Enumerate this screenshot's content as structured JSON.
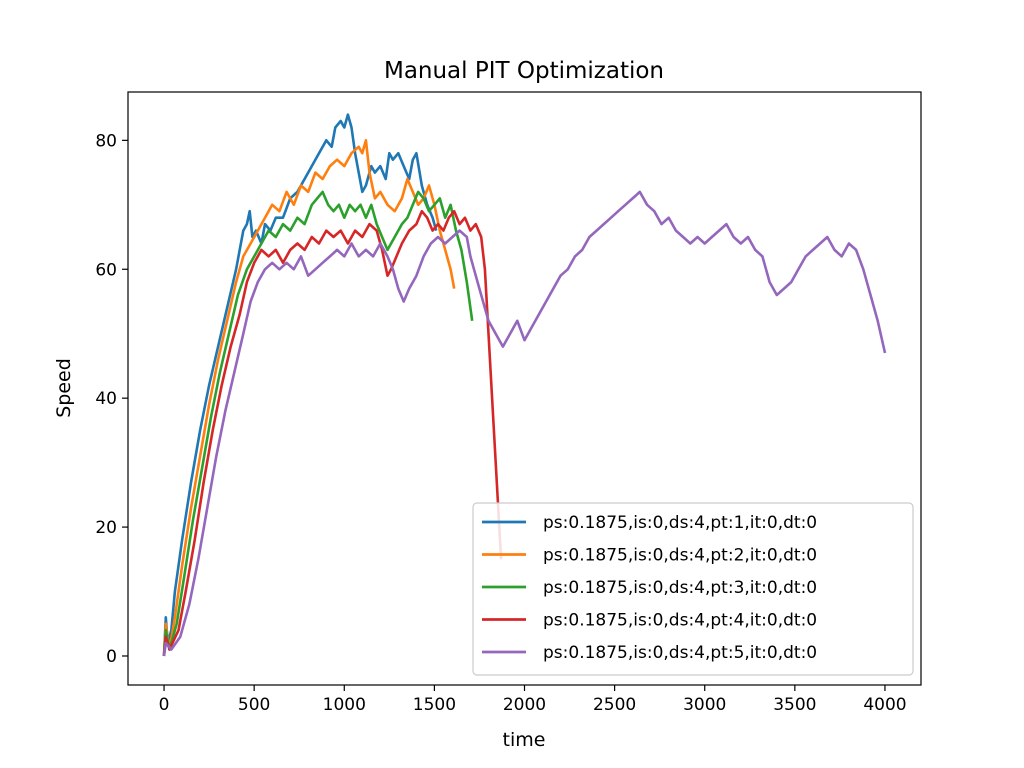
{
  "chart_data": {
    "type": "line",
    "title": "Manual PIT Optimization",
    "xlabel": "time",
    "ylabel": "Speed",
    "xlim": [
      -200,
      4200
    ],
    "ylim": [
      -4.5,
      87.5
    ],
    "xticks": [
      0,
      500,
      1000,
      1500,
      2000,
      2500,
      3000,
      3500,
      4000
    ],
    "yticks": [
      0,
      20,
      40,
      60,
      80
    ],
    "grid": false,
    "legend_position": "lower-right",
    "series": [
      {
        "name": "ps:0.1875,is:0,ds:4,pt:1,it:0,dt:0",
        "color": "#1f77b4",
        "points": [
          [
            0,
            0
          ],
          [
            10,
            6
          ],
          [
            20,
            2
          ],
          [
            40,
            4
          ],
          [
            60,
            10
          ],
          [
            100,
            18
          ],
          [
            150,
            27
          ],
          [
            200,
            35
          ],
          [
            250,
            42
          ],
          [
            300,
            48
          ],
          [
            350,
            54
          ],
          [
            400,
            60
          ],
          [
            420,
            63
          ],
          [
            440,
            66
          ],
          [
            460,
            67
          ],
          [
            475,
            69
          ],
          [
            490,
            65
          ],
          [
            510,
            66
          ],
          [
            540,
            64
          ],
          [
            560,
            67
          ],
          [
            590,
            66
          ],
          [
            620,
            68
          ],
          [
            660,
            68
          ],
          [
            700,
            71
          ],
          [
            740,
            72
          ],
          [
            780,
            74
          ],
          [
            820,
            76
          ],
          [
            860,
            78
          ],
          [
            900,
            80
          ],
          [
            930,
            79
          ],
          [
            950,
            82
          ],
          [
            980,
            83
          ],
          [
            1000,
            82
          ],
          [
            1020,
            84
          ],
          [
            1040,
            82
          ],
          [
            1060,
            78
          ],
          [
            1080,
            75
          ],
          [
            1100,
            72
          ],
          [
            1120,
            73
          ],
          [
            1150,
            76
          ],
          [
            1170,
            75
          ],
          [
            1200,
            76
          ],
          [
            1230,
            74
          ],
          [
            1250,
            78
          ],
          [
            1270,
            77
          ],
          [
            1300,
            78
          ],
          [
            1330,
            76
          ],
          [
            1360,
            74
          ],
          [
            1380,
            77
          ],
          [
            1400,
            78
          ],
          [
            1430,
            73
          ],
          [
            1460,
            70
          ],
          [
            1490,
            68
          ],
          [
            1510,
            66
          ]
        ]
      },
      {
        "name": "ps:0.1875,is:0,ds:4,pt:2,it:0,dt:0",
        "color": "#ff7f0e",
        "points": [
          [
            0,
            0
          ],
          [
            10,
            5
          ],
          [
            30,
            1
          ],
          [
            60,
            6
          ],
          [
            100,
            14
          ],
          [
            150,
            23
          ],
          [
            200,
            31
          ],
          [
            250,
            39
          ],
          [
            300,
            46
          ],
          [
            350,
            52
          ],
          [
            400,
            58
          ],
          [
            440,
            62
          ],
          [
            480,
            64
          ],
          [
            520,
            66
          ],
          [
            560,
            68
          ],
          [
            600,
            70
          ],
          [
            640,
            69
          ],
          [
            680,
            72
          ],
          [
            720,
            70
          ],
          [
            760,
            73
          ],
          [
            800,
            72
          ],
          [
            840,
            75
          ],
          [
            880,
            74
          ],
          [
            920,
            76
          ],
          [
            960,
            77
          ],
          [
            1000,
            76
          ],
          [
            1040,
            78
          ],
          [
            1080,
            79
          ],
          [
            1100,
            78
          ],
          [
            1120,
            80
          ],
          [
            1140,
            75
          ],
          [
            1170,
            71
          ],
          [
            1200,
            72
          ],
          [
            1240,
            70
          ],
          [
            1280,
            69
          ],
          [
            1320,
            71
          ],
          [
            1350,
            74
          ],
          [
            1380,
            72
          ],
          [
            1410,
            70
          ],
          [
            1440,
            71
          ],
          [
            1470,
            73
          ],
          [
            1500,
            70
          ],
          [
            1530,
            66
          ],
          [
            1560,
            63
          ],
          [
            1590,
            60
          ],
          [
            1610,
            57
          ]
        ]
      },
      {
        "name": "ps:0.1875,is:0,ds:4,pt:3,it:0,dt:0",
        "color": "#2ca02c",
        "points": [
          [
            0,
            0
          ],
          [
            10,
            4
          ],
          [
            30,
            1
          ],
          [
            70,
            5
          ],
          [
            110,
            12
          ],
          [
            160,
            21
          ],
          [
            210,
            29
          ],
          [
            260,
            37
          ],
          [
            310,
            44
          ],
          [
            360,
            50
          ],
          [
            410,
            56
          ],
          [
            460,
            60
          ],
          [
            500,
            62
          ],
          [
            540,
            64
          ],
          [
            580,
            66
          ],
          [
            620,
            65
          ],
          [
            660,
            67
          ],
          [
            700,
            66
          ],
          [
            740,
            68
          ],
          [
            780,
            67
          ],
          [
            820,
            70
          ],
          [
            850,
            71
          ],
          [
            880,
            72
          ],
          [
            910,
            70
          ],
          [
            940,
            69
          ],
          [
            970,
            70
          ],
          [
            1000,
            68
          ],
          [
            1030,
            70
          ],
          [
            1060,
            69
          ],
          [
            1090,
            70
          ],
          [
            1120,
            68
          ],
          [
            1150,
            70
          ],
          [
            1180,
            67
          ],
          [
            1210,
            65
          ],
          [
            1240,
            63
          ],
          [
            1280,
            65
          ],
          [
            1320,
            67
          ],
          [
            1350,
            68
          ],
          [
            1380,
            70
          ],
          [
            1410,
            72
          ],
          [
            1440,
            71
          ],
          [
            1470,
            69
          ],
          [
            1500,
            70
          ],
          [
            1530,
            71
          ],
          [
            1560,
            68
          ],
          [
            1590,
            70
          ],
          [
            1620,
            66
          ],
          [
            1650,
            63
          ],
          [
            1680,
            58
          ],
          [
            1710,
            52
          ]
        ]
      },
      {
        "name": "ps:0.1875,is:0,ds:4,pt:4,it:0,dt:0",
        "color": "#d62728",
        "points": [
          [
            0,
            0
          ],
          [
            10,
            3
          ],
          [
            30,
            1
          ],
          [
            80,
            4
          ],
          [
            120,
            10
          ],
          [
            170,
            18
          ],
          [
            220,
            27
          ],
          [
            270,
            35
          ],
          [
            320,
            42
          ],
          [
            370,
            48
          ],
          [
            420,
            53
          ],
          [
            460,
            58
          ],
          [
            500,
            61
          ],
          [
            540,
            63
          ],
          [
            580,
            62
          ],
          [
            620,
            63
          ],
          [
            660,
            61
          ],
          [
            700,
            63
          ],
          [
            740,
            64
          ],
          [
            780,
            63
          ],
          [
            820,
            65
          ],
          [
            860,
            64
          ],
          [
            900,
            66
          ],
          [
            940,
            65
          ],
          [
            980,
            66
          ],
          [
            1020,
            64
          ],
          [
            1060,
            66
          ],
          [
            1100,
            65
          ],
          [
            1140,
            67
          ],
          [
            1180,
            66
          ],
          [
            1210,
            63
          ],
          [
            1240,
            59
          ],
          [
            1260,
            60
          ],
          [
            1290,
            62
          ],
          [
            1320,
            64
          ],
          [
            1360,
            66
          ],
          [
            1400,
            67
          ],
          [
            1430,
            69
          ],
          [
            1460,
            68
          ],
          [
            1490,
            66
          ],
          [
            1520,
            67
          ],
          [
            1550,
            66
          ],
          [
            1580,
            68
          ],
          [
            1610,
            69
          ],
          [
            1640,
            67
          ],
          [
            1670,
            68
          ],
          [
            1700,
            66
          ],
          [
            1730,
            67
          ],
          [
            1760,
            65
          ],
          [
            1780,
            60
          ],
          [
            1800,
            50
          ],
          [
            1820,
            40
          ],
          [
            1840,
            30
          ],
          [
            1860,
            20
          ],
          [
            1870,
            15
          ]
        ]
      },
      {
        "name": "ps:0.1875,is:0,ds:4,pt:5,it:0,dt:0",
        "color": "#9467bd",
        "points": [
          [
            0,
            0
          ],
          [
            10,
            2
          ],
          [
            40,
            1
          ],
          [
            90,
            3
          ],
          [
            140,
            8
          ],
          [
            190,
            15
          ],
          [
            240,
            23
          ],
          [
            290,
            31
          ],
          [
            340,
            38
          ],
          [
            390,
            44
          ],
          [
            440,
            50
          ],
          [
            480,
            55
          ],
          [
            520,
            58
          ],
          [
            560,
            60
          ],
          [
            600,
            61
          ],
          [
            640,
            60
          ],
          [
            680,
            61
          ],
          [
            720,
            60
          ],
          [
            760,
            62
          ],
          [
            800,
            59
          ],
          [
            840,
            60
          ],
          [
            880,
            61
          ],
          [
            920,
            62
          ],
          [
            960,
            63
          ],
          [
            1000,
            62
          ],
          [
            1040,
            64
          ],
          [
            1080,
            62
          ],
          [
            1120,
            63
          ],
          [
            1160,
            62
          ],
          [
            1200,
            64
          ],
          [
            1240,
            62
          ],
          [
            1270,
            60
          ],
          [
            1300,
            57
          ],
          [
            1330,
            55
          ],
          [
            1360,
            57
          ],
          [
            1400,
            59
          ],
          [
            1440,
            62
          ],
          [
            1480,
            64
          ],
          [
            1520,
            65
          ],
          [
            1560,
            64
          ],
          [
            1600,
            65
          ],
          [
            1640,
            66
          ],
          [
            1680,
            65
          ],
          [
            1700,
            62
          ],
          [
            1720,
            60
          ],
          [
            1760,
            56
          ],
          [
            1800,
            52
          ],
          [
            1840,
            50
          ],
          [
            1880,
            48
          ],
          [
            1920,
            50
          ],
          [
            1960,
            52
          ],
          [
            2000,
            49
          ],
          [
            2040,
            51
          ],
          [
            2080,
            53
          ],
          [
            2120,
            55
          ],
          [
            2160,
            57
          ],
          [
            2200,
            59
          ],
          [
            2240,
            60
          ],
          [
            2280,
            62
          ],
          [
            2320,
            63
          ],
          [
            2360,
            65
          ],
          [
            2400,
            66
          ],
          [
            2440,
            67
          ],
          [
            2480,
            68
          ],
          [
            2520,
            69
          ],
          [
            2560,
            70
          ],
          [
            2600,
            71
          ],
          [
            2640,
            72
          ],
          [
            2680,
            70
          ],
          [
            2720,
            69
          ],
          [
            2760,
            67
          ],
          [
            2800,
            68
          ],
          [
            2840,
            66
          ],
          [
            2880,
            65
          ],
          [
            2920,
            64
          ],
          [
            2960,
            65
          ],
          [
            3000,
            64
          ],
          [
            3040,
            65
          ],
          [
            3080,
            66
          ],
          [
            3120,
            67
          ],
          [
            3160,
            65
          ],
          [
            3200,
            64
          ],
          [
            3240,
            65
          ],
          [
            3280,
            63
          ],
          [
            3320,
            62
          ],
          [
            3360,
            58
          ],
          [
            3400,
            56
          ],
          [
            3440,
            57
          ],
          [
            3480,
            58
          ],
          [
            3520,
            60
          ],
          [
            3560,
            62
          ],
          [
            3600,
            63
          ],
          [
            3640,
            64
          ],
          [
            3680,
            65
          ],
          [
            3720,
            63
          ],
          [
            3760,
            62
          ],
          [
            3800,
            64
          ],
          [
            3840,
            63
          ],
          [
            3880,
            60
          ],
          [
            3920,
            56
          ],
          [
            3960,
            52
          ],
          [
            4000,
            47
          ]
        ]
      }
    ]
  }
}
